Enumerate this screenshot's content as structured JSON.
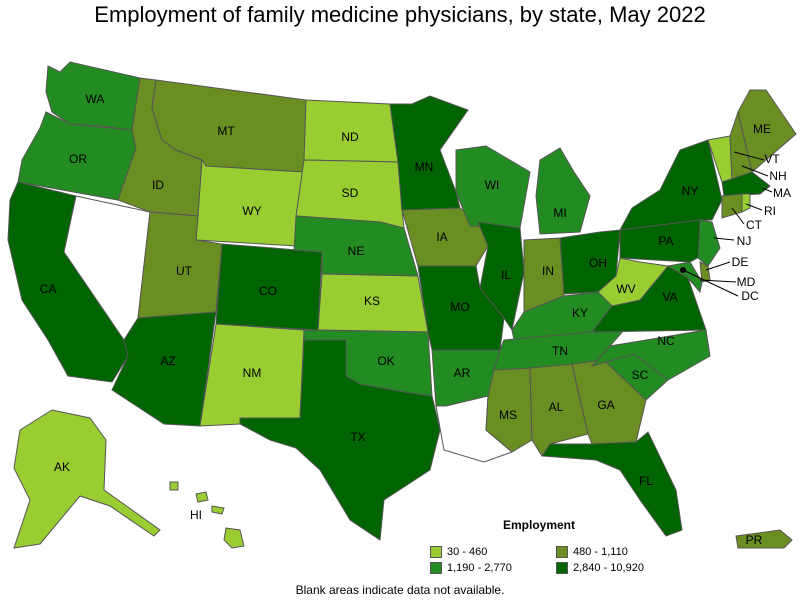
{
  "title": "Employment of family medicine physicians, by state, May 2022",
  "legend": {
    "title": "Employment",
    "items": [
      {
        "label": "30 - 460",
        "color": "#9acd32"
      },
      {
        "label": "480 - 1,110",
        "color": "#6b8e23"
      },
      {
        "label": "1,190 - 2,770",
        "color": "#228b22"
      },
      {
        "label": "2,840 - 10,920",
        "color": "#006400"
      }
    ]
  },
  "footnote": "Blank areas indicate data not available.",
  "states": {
    "WA": {
      "label": "WA",
      "tier": 2
    },
    "OR": {
      "label": "OR",
      "tier": 2
    },
    "CA": {
      "label": "CA",
      "tier": 3
    },
    "NV": {
      "label": "",
      "tier": -1
    },
    "ID": {
      "label": "ID",
      "tier": 1
    },
    "MT": {
      "label": "MT",
      "tier": 1
    },
    "WY": {
      "label": "WY",
      "tier": 0
    },
    "UT": {
      "label": "UT",
      "tier": 1
    },
    "AZ": {
      "label": "AZ",
      "tier": 3
    },
    "CO": {
      "label": "CO",
      "tier": 3
    },
    "NM": {
      "label": "NM",
      "tier": 0
    },
    "ND": {
      "label": "ND",
      "tier": 0
    },
    "SD": {
      "label": "SD",
      "tier": 0
    },
    "NE": {
      "label": "NE",
      "tier": 2
    },
    "KS": {
      "label": "KS",
      "tier": 0
    },
    "OK": {
      "label": "OK",
      "tier": 2
    },
    "TX": {
      "label": "TX",
      "tier": 3
    },
    "MN": {
      "label": "MN",
      "tier": 3
    },
    "IA": {
      "label": "IA",
      "tier": 1
    },
    "MO": {
      "label": "MO",
      "tier": 3
    },
    "AR": {
      "label": "AR",
      "tier": 2
    },
    "LA": {
      "label": "",
      "tier": -1
    },
    "WI": {
      "label": "WI",
      "tier": 2
    },
    "IL": {
      "label": "IL",
      "tier": 3
    },
    "MI": {
      "label": "MI",
      "tier": 2
    },
    "IN": {
      "label": "IN",
      "tier": 1
    },
    "OH": {
      "label": "OH",
      "tier": 3
    },
    "KY": {
      "label": "KY",
      "tier": 2
    },
    "TN": {
      "label": "TN",
      "tier": 2
    },
    "MS": {
      "label": "MS",
      "tier": 1
    },
    "AL": {
      "label": "AL",
      "tier": 1
    },
    "GA": {
      "label": "GA",
      "tier": 1
    },
    "FL": {
      "label": "FL",
      "tier": 3
    },
    "SC": {
      "label": "SC",
      "tier": 2
    },
    "NC": {
      "label": "NC",
      "tier": 2
    },
    "VA": {
      "label": "VA",
      "tier": 3
    },
    "WV": {
      "label": "WV",
      "tier": 0
    },
    "PA": {
      "label": "PA",
      "tier": 3
    },
    "NY": {
      "label": "NY",
      "tier": 3
    },
    "ME": {
      "label": "ME",
      "tier": 1
    },
    "VT": {
      "label": "VT",
      "tier": 0
    },
    "NH": {
      "label": "NH",
      "tier": 1
    },
    "MA": {
      "label": "MA",
      "tier": 3
    },
    "RI": {
      "label": "RI",
      "tier": 0
    },
    "CT": {
      "label": "CT",
      "tier": 1
    },
    "NJ": {
      "label": "NJ",
      "tier": 2
    },
    "DE": {
      "label": "DE",
      "tier": 1
    },
    "MD": {
      "label": "MD",
      "tier": 2
    },
    "DC": {
      "label": "DC",
      "tier": 3
    },
    "AK": {
      "label": "AK",
      "tier": 0
    },
    "HI": {
      "label": "HI",
      "tier": 0
    },
    "PR": {
      "label": "PR",
      "tier": 1
    }
  }
}
